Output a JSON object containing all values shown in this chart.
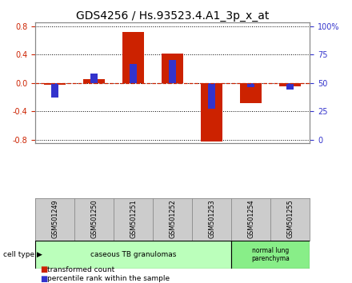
{
  "title": "GDS4256 / Hs.93523.4.A1_3p_x_at",
  "samples": [
    "GSM501249",
    "GSM501250",
    "GSM501251",
    "GSM501252",
    "GSM501253",
    "GSM501254",
    "GSM501255"
  ],
  "transformed_count": [
    -0.02,
    0.05,
    0.72,
    0.41,
    -0.82,
    -0.28,
    -0.05
  ],
  "percentile_rank": [
    37,
    58,
    67,
    70,
    27,
    46,
    44
  ],
  "ylim": [
    -0.85,
    0.85
  ],
  "yticks": [
    -0.8,
    -0.4,
    0.0,
    0.4,
    0.8
  ],
  "right_yticks": [
    0,
    25,
    50,
    75,
    100
  ],
  "right_yticklabels": [
    "0",
    "25",
    "50",
    "75",
    "100%"
  ],
  "red_color": "#cc2200",
  "blue_color": "#3333cc",
  "group1_label": "caseous TB granulomas",
  "group2_label": "normal lung\nparenchyma",
  "cell_type_label": "cell type",
  "legend1": "transformed count",
  "legend2": "percentile rank within the sample",
  "bg_color": "#ffffff",
  "group1_bg": "#bbffbb",
  "group2_bg": "#88ee88",
  "label_area_bg": "#cccccc",
  "title_fontsize": 10,
  "tick_fontsize": 7,
  "label_fontsize": 7
}
